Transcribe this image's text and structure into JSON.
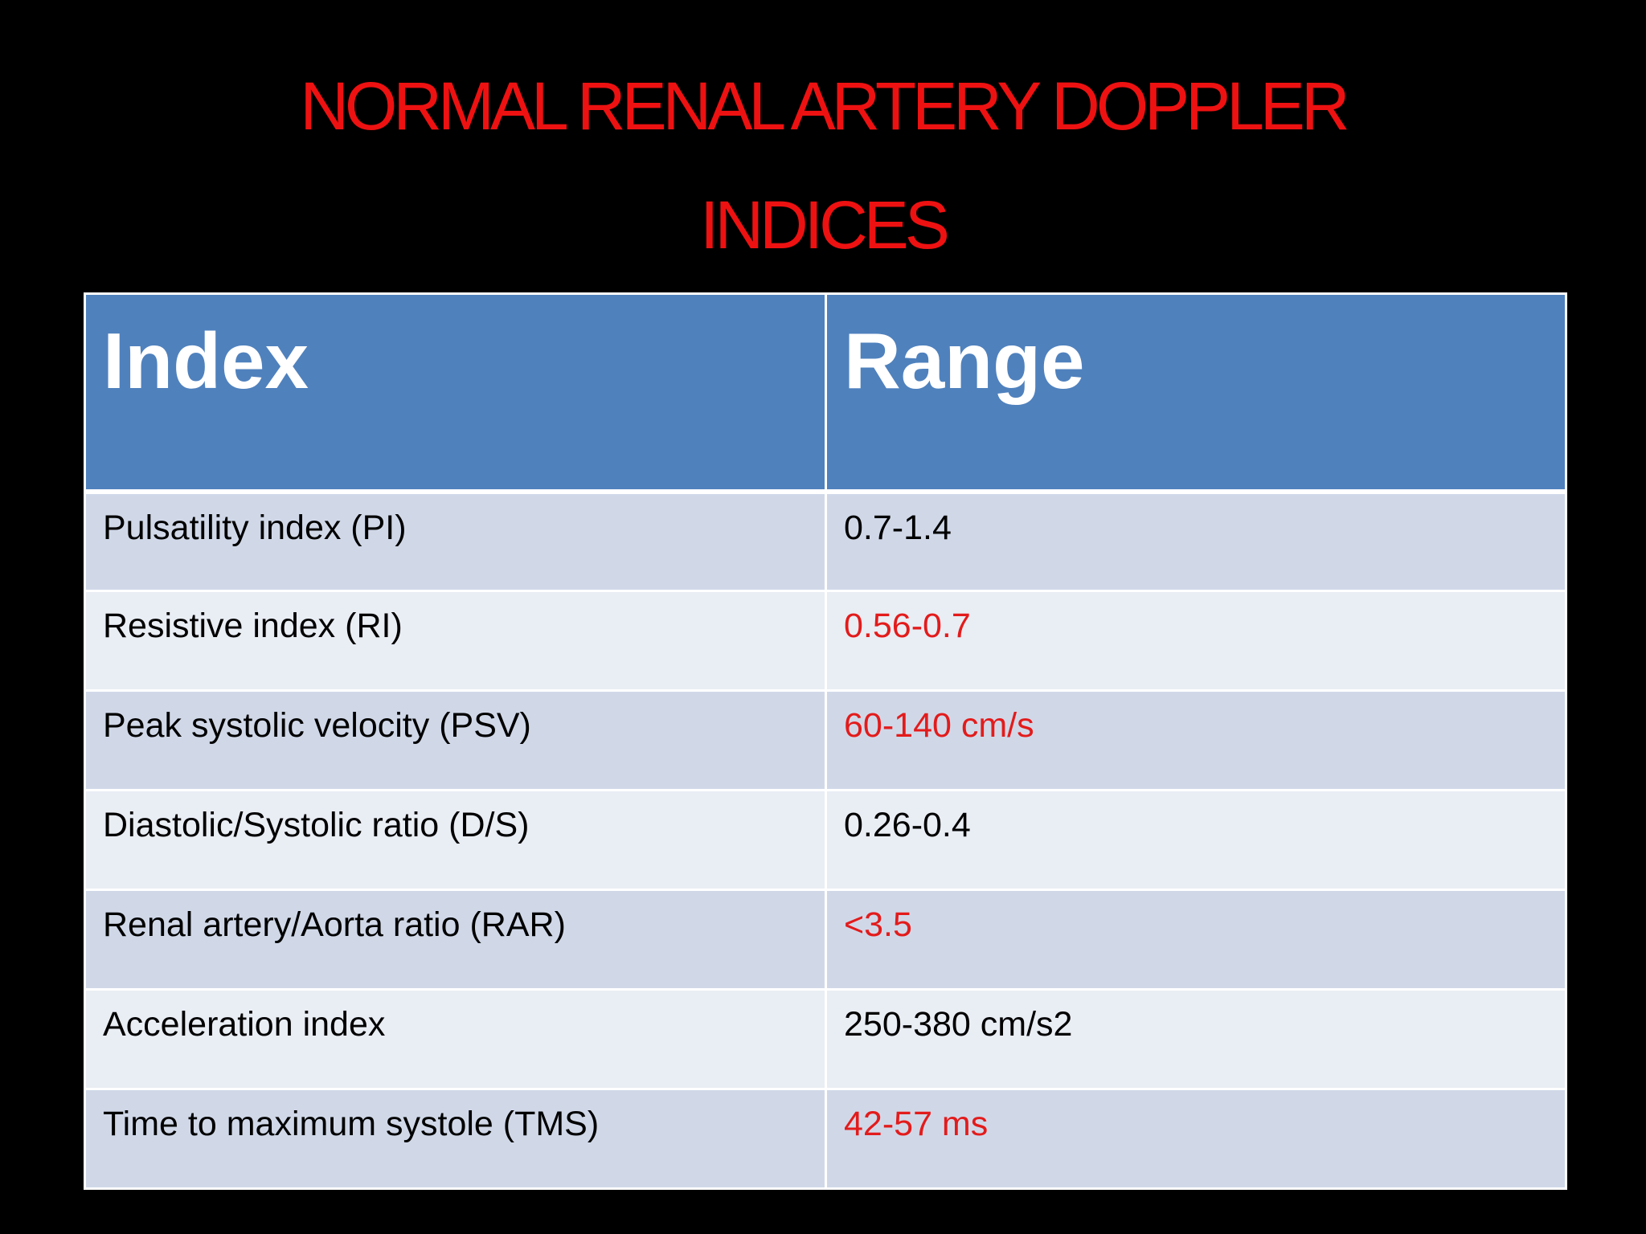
{
  "title": "NORMAL RENAL ARTERY DOPPLER INDICES",
  "table": {
    "header": [
      "Index",
      "Range"
    ],
    "rows": [
      [
        "Pulsatility index (PI)",
        "0.7-1.4"
      ],
      [
        "Resistive index (RI)",
        "0.56-0.7"
      ],
      [
        "Peak systolic velocity (PSV)",
        "60-140 cm/s"
      ],
      [
        "Diastolic/Systolic ratio (D/S)",
        "0.26-0.4"
      ],
      [
        "Renal artery/Aorta ratio (RAR)",
        "<3.5"
      ],
      [
        "Acceleration index",
        "250-380 cm/s2"
      ],
      [
        "Time to maximum systole (TMS)",
        "42-57 ms"
      ]
    ]
  }
}
